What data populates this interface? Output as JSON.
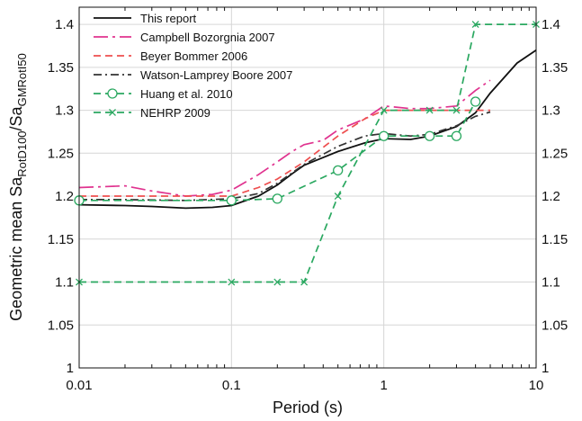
{
  "chart_data": {
    "type": "line",
    "xlabel": "Period (s)",
    "ylabel": "Geometric mean Sa",
    "ylabel_sub1": "RotD100",
    "ylabel_mid": "/Sa",
    "ylabel_sub2": "GMRotI50",
    "xscale": "log",
    "xlim": [
      0.01,
      10
    ],
    "ylim": [
      1.0,
      1.42
    ],
    "x_ticks": [
      0.01,
      0.1,
      1,
      10
    ],
    "x_tick_labels": [
      "0.01",
      "0.1",
      "1",
      "10"
    ],
    "y_ticks": [
      1,
      1.05,
      1.1,
      1.15,
      1.2,
      1.25,
      1.3,
      1.35,
      1.4
    ],
    "y_tick_labels": [
      "1",
      "1.05",
      "1.1",
      "1.15",
      "1.2",
      "1.25",
      "1.3",
      "1.35",
      "1.4"
    ],
    "right_y_axis": true,
    "grid": true,
    "legend_position": "top-left",
    "series": [
      {
        "name": "This report",
        "color": "#111111",
        "dash": "solid",
        "marker": "none",
        "x": [
          0.01,
          0.02,
          0.03,
          0.05,
          0.075,
          0.1,
          0.15,
          0.2,
          0.25,
          0.3,
          0.4,
          0.5,
          0.75,
          1,
          1.5,
          2,
          3,
          4,
          5,
          7.5,
          10
        ],
        "y": [
          1.19,
          1.189,
          1.188,
          1.186,
          1.187,
          1.189,
          1.2,
          1.213,
          1.226,
          1.236,
          1.245,
          1.252,
          1.262,
          1.267,
          1.266,
          1.27,
          1.281,
          1.297,
          1.32,
          1.355,
          1.37
        ]
      },
      {
        "name": "Campbell Bozorgnia 2007",
        "color": "#e0338f",
        "dash": "longdash",
        "marker": "none",
        "x": [
          0.01,
          0.02,
          0.03,
          0.05,
          0.075,
          0.1,
          0.15,
          0.2,
          0.25,
          0.3,
          0.4,
          0.5,
          0.75,
          1,
          1.5,
          2,
          3,
          4,
          5
        ],
        "y": [
          1.21,
          1.212,
          1.206,
          1.2,
          1.202,
          1.207,
          1.225,
          1.24,
          1.252,
          1.26,
          1.265,
          1.277,
          1.29,
          1.305,
          1.302,
          1.302,
          1.305,
          1.323,
          1.335
        ]
      },
      {
        "name": "Beyer Bommer 2006",
        "color": "#ee4f4f",
        "dash": "dashed",
        "marker": "none",
        "x": [
          0.01,
          0.02,
          0.05,
          0.1,
          0.15,
          0.2,
          0.3,
          0.5,
          0.75,
          1,
          1.5,
          2,
          3,
          4,
          5
        ],
        "y": [
          1.2,
          1.2,
          1.2,
          1.2,
          1.21,
          1.22,
          1.24,
          1.27,
          1.29,
          1.3,
          1.3,
          1.3,
          1.3,
          1.3,
          1.3
        ]
      },
      {
        "name": "Watson-Lamprey Boore 2007",
        "color": "#333333",
        "dash": "dashdot",
        "marker": "none",
        "x": [
          0.01,
          0.02,
          0.05,
          0.1,
          0.15,
          0.2,
          0.3,
          0.5,
          0.75,
          1,
          1.5,
          2,
          3,
          4,
          5
        ],
        "y": [
          1.196,
          1.196,
          1.195,
          1.197,
          1.203,
          1.215,
          1.237,
          1.258,
          1.27,
          1.273,
          1.27,
          1.272,
          1.282,
          1.293,
          1.298
        ]
      },
      {
        "name": "Huang et al. 2010",
        "color": "#2aa860",
        "dash": "dashed",
        "marker": "circle",
        "x": [
          0.01,
          0.1,
          0.2,
          0.5,
          1,
          2,
          3,
          4
        ],
        "y": [
          1.195,
          1.195,
          1.197,
          1.23,
          1.27,
          1.27,
          1.27,
          1.31
        ]
      },
      {
        "name": "NEHRP 2009",
        "color": "#2aa860",
        "dash": "dashed",
        "marker": "x",
        "x": [
          0.01,
          0.1,
          0.2,
          0.3,
          0.5,
          1,
          2,
          3,
          4,
          10
        ],
        "y": [
          1.1,
          1.1,
          1.1,
          1.1,
          1.2,
          1.3,
          1.3,
          1.3,
          1.4,
          1.4
        ]
      }
    ]
  }
}
